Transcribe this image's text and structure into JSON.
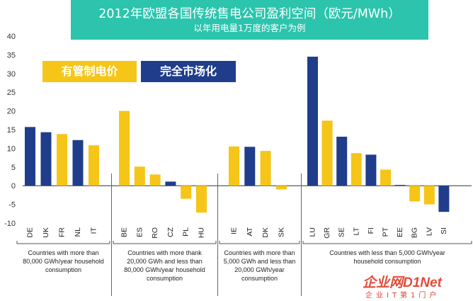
{
  "title": "2012年欧盟各国传统售电公司盈利空间（欧元/MWh）",
  "subtitle": "以年用电量1万度的客户为例",
  "legend": [
    {
      "label": "有管制电价",
      "color": "#f5c518"
    },
    {
      "label": "完全市场化",
      "color": "#203d8c"
    }
  ],
  "watermark": {
    "logo": "企业网D1Net",
    "sub": "企业IT第1门户"
  },
  "chart_data": {
    "type": "bar",
    "ylim": [
      -10,
      40
    ],
    "yticks": [
      -10,
      -5,
      0,
      5,
      10,
      15,
      20,
      25,
      30,
      35,
      40
    ],
    "grid": false,
    "legend_position": "top-left",
    "categories": [
      "DE",
      "UK",
      "FR",
      "NL",
      "IT",
      "BE",
      "ES",
      "RO",
      "CZ",
      "PL",
      "HU",
      "IE",
      "AT",
      "DK",
      "SK",
      "LU",
      "GR",
      "SE",
      "LT",
      "FI",
      "PT",
      "EE",
      "BG",
      "LV",
      "SI"
    ],
    "values": [
      15.7,
      14.3,
      13.8,
      12.2,
      10.8,
      20.0,
      5.1,
      3.0,
      1.1,
      -3.5,
      -7.2,
      10.5,
      10.4,
      9.3,
      -1.0,
      34.5,
      17.4,
      13.1,
      8.7,
      8.3,
      4.3,
      0.2,
      -4.2,
      -5.0,
      -7.0
    ],
    "colors": [
      "blue",
      "blue",
      "yellow",
      "blue",
      "yellow",
      "yellow",
      "yellow",
      "yellow",
      "blue",
      "yellow",
      "yellow",
      "yellow",
      "blue",
      "yellow",
      "yellow",
      "blue",
      "yellow",
      "blue",
      "yellow",
      "blue",
      "yellow",
      "blue",
      "yellow",
      "yellow",
      "blue"
    ],
    "groups": [
      {
        "label": "Countries with more than 80,000 GWh/year household consumption",
        "count": 5
      },
      {
        "label": "Countries with more thank 20,000 GWh and less than 80,000 GWh/year household consumption",
        "count": 6
      },
      {
        "label": "Countries with more than 5,000 GWh and less than 20,000 GWh/year consumption",
        "count": 4
      },
      {
        "label": "Countries with less than 5,000 GWh/year household consumption",
        "count": 10
      }
    ]
  }
}
